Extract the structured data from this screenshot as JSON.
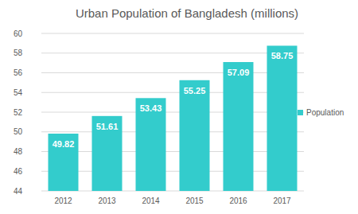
{
  "chart_data": {
    "type": "bar",
    "title": "Urban Population of Bangladesh (millions)",
    "categories": [
      "2012",
      "2013",
      "2014",
      "2015",
      "2016",
      "2017"
    ],
    "series": [
      {
        "name": "Population",
        "color": "#33cccc",
        "values": [
          49.82,
          51.61,
          53.43,
          55.25,
          57.09,
          58.75
        ]
      }
    ],
    "ylim": [
      44,
      60
    ],
    "yticks": [
      44,
      46,
      48,
      50,
      52,
      54,
      56,
      58,
      60
    ],
    "grid": true,
    "data_labels": true,
    "legend": "right"
  }
}
